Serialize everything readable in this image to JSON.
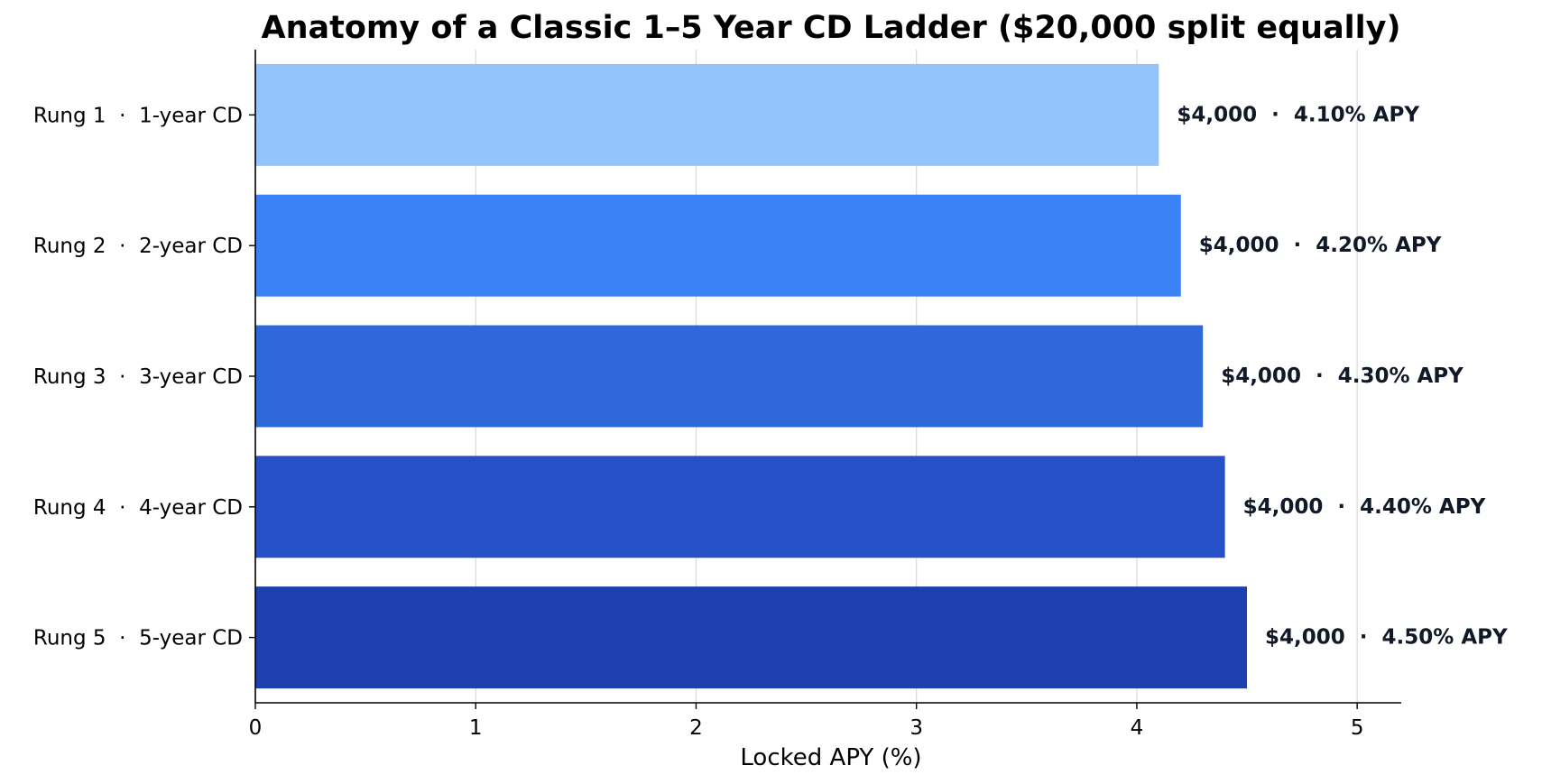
{
  "chart_data": {
    "type": "bar",
    "orientation": "horizontal",
    "title": "Anatomy of a Classic 1–5 Year CD Ladder ($20,000 split equally)",
    "xlabel": "Locked APY (%)",
    "ylabel": "",
    "xlim": [
      0,
      5.2
    ],
    "xticks": [
      0,
      1,
      2,
      3,
      4,
      5
    ],
    "grid": "vertical",
    "categories": [
      "Rung 1  ·  1-year CD",
      "Rung 2  ·  2-year CD",
      "Rung 3  ·  3-year CD",
      "Rung 4  ·  4-year CD",
      "Rung 5  ·  5-year CD"
    ],
    "values": [
      4.1,
      4.2,
      4.3,
      4.4,
      4.5
    ],
    "data_labels": [
      "$4,000  ·  4.10% APY",
      "$4,000  ·  4.20% APY",
      "$4,000  ·  4.30% APY",
      "$4,000  ·  4.40% APY",
      "$4,000  ·  4.50% APY"
    ],
    "colors": [
      "#93c5fd",
      "#3b82f6",
      "#2f68d8",
      "#2550c8",
      "#1e40af"
    ]
  }
}
